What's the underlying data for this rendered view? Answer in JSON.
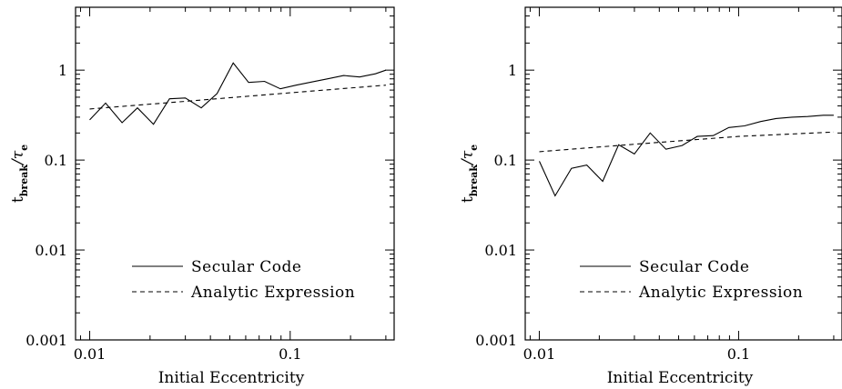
{
  "chart_data": [
    {
      "type": "line",
      "title": "",
      "xlabel": "Initial Eccentricity",
      "ylabel_main": "t",
      "ylabel_sub": "break",
      "ylabel_denom": "/τ",
      "ylabel_denom_sub": "e",
      "xscale": "log",
      "yscale": "log",
      "xlim": [
        0.0085,
        0.33
      ],
      "ylim": [
        0.001,
        5
      ],
      "x_ticks": [
        {
          "value": 0.01,
          "label": "0.01"
        },
        {
          "value": 0.1,
          "label": "0.1"
        }
      ],
      "y_ticks": [
        {
          "value": 0.001,
          "label": "0.001"
        },
        {
          "value": 0.01,
          "label": "0.01"
        },
        {
          "value": 0.1,
          "label": "0.1"
        },
        {
          "value": 1,
          "label": "1"
        }
      ],
      "legend_position": "lower-right",
      "series": [
        {
          "name": "Secular Code",
          "style": "solid",
          "x": [
            0.01,
            0.012,
            0.0145,
            0.0173,
            0.0208,
            0.025,
            0.03,
            0.036,
            0.0432,
            0.052,
            0.062,
            0.0745,
            0.0893,
            0.107,
            0.129,
            0.154,
            0.185,
            0.222,
            0.266,
            0.3
          ],
          "y": [
            0.28,
            0.43,
            0.26,
            0.38,
            0.25,
            0.48,
            0.49,
            0.38,
            0.55,
            1.2,
            0.73,
            0.75,
            0.62,
            0.68,
            0.74,
            0.8,
            0.87,
            0.84,
            0.91,
            1.0
          ]
        },
        {
          "name": "Analytic Expression",
          "style": "dashed",
          "x": [
            0.01,
            0.03,
            0.1,
            0.3
          ],
          "y": [
            0.37,
            0.45,
            0.56,
            0.68
          ]
        }
      ]
    },
    {
      "type": "line",
      "title": "",
      "xlabel": "Initial Eccentricity",
      "ylabel_main": "t",
      "ylabel_sub": "break",
      "ylabel_denom": "/τ",
      "ylabel_denom_sub": "e",
      "xscale": "log",
      "yscale": "log",
      "xlim": [
        0.0085,
        0.33
      ],
      "ylim": [
        0.001,
        5
      ],
      "x_ticks": [
        {
          "value": 0.01,
          "label": "0.01"
        },
        {
          "value": 0.1,
          "label": "0.1"
        }
      ],
      "y_ticks": [
        {
          "value": 0.001,
          "label": "0.001"
        },
        {
          "value": 0.01,
          "label": "0.01"
        },
        {
          "value": 0.1,
          "label": "0.1"
        },
        {
          "value": 1,
          "label": "1"
        }
      ],
      "legend_position": "lower-right",
      "series": [
        {
          "name": "Secular Code",
          "style": "solid",
          "x": [
            0.01,
            0.012,
            0.0145,
            0.0173,
            0.0208,
            0.025,
            0.03,
            0.036,
            0.0432,
            0.052,
            0.062,
            0.0745,
            0.0893,
            0.107,
            0.129,
            0.154,
            0.185,
            0.222,
            0.266,
            0.3
          ],
          "y": [
            0.097,
            0.04,
            0.081,
            0.088,
            0.058,
            0.148,
            0.117,
            0.2,
            0.132,
            0.145,
            0.183,
            0.187,
            0.23,
            0.24,
            0.268,
            0.29,
            0.3,
            0.305,
            0.315,
            0.315
          ]
        },
        {
          "name": "Analytic Expression",
          "style": "dashed",
          "x": [
            0.01,
            0.03,
            0.1,
            0.3
          ],
          "y": [
            0.124,
            0.15,
            0.183,
            0.205
          ]
        }
      ]
    }
  ]
}
